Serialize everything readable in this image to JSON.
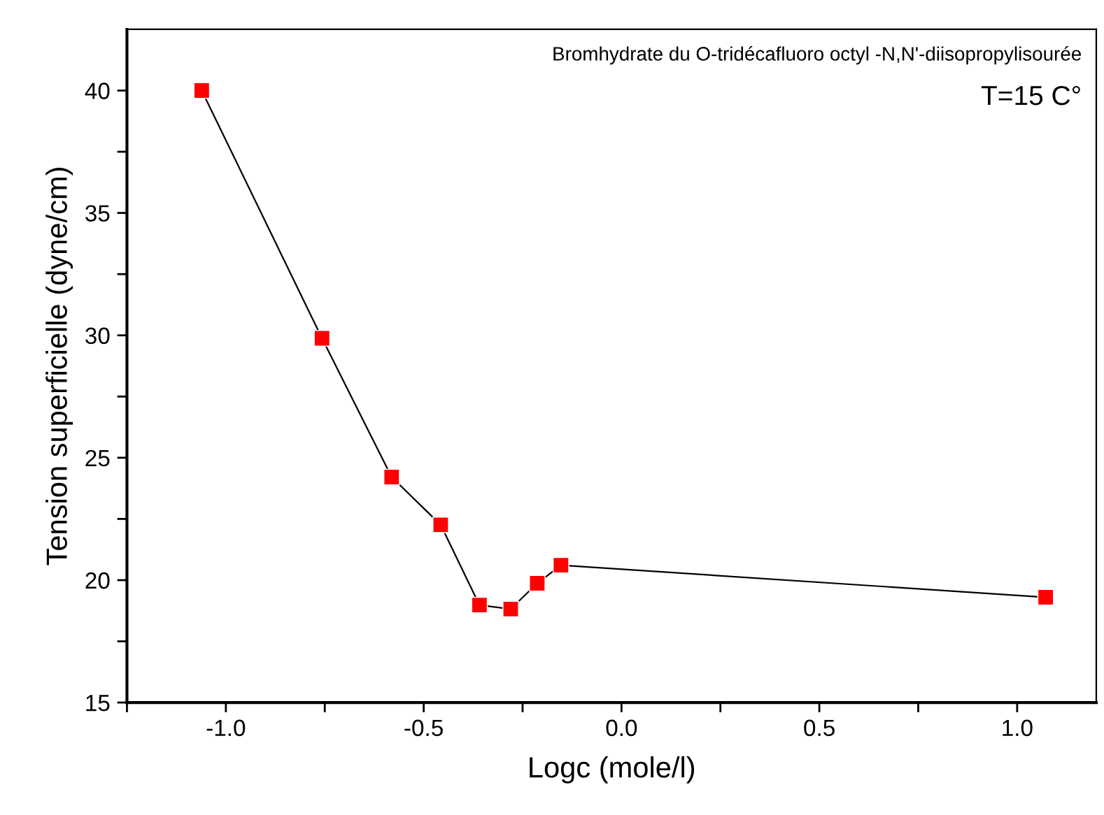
{
  "chart_data": {
    "type": "line",
    "xlabel": "Logc (mole/l)",
    "ylabel": "Tension superficielle (dyne/cm)",
    "annotations": [
      "Bromhydrate du O-tridécafluoro octyl -N,N'-diisopropylisourée",
      "T=15 C°"
    ],
    "x": [
      -1.061,
      -0.757,
      -0.581,
      -0.457,
      -0.359,
      -0.28,
      -0.213,
      -0.153,
      1.072
    ],
    "series": [
      {
        "color": "#ff0000",
        "values": [
          40,
          29.88,
          24.21,
          22.26,
          18.98,
          18.82,
          19.87,
          20.61,
          19.3
        ]
      }
    ],
    "marker": "square",
    "line_style": "solid",
    "grid": false,
    "legend": false,
    "xlim": [
      -1.25,
      1.2
    ],
    "xticks": [
      {
        "value": -1.25,
        "label": null
      },
      {
        "value": -1,
        "label": "-1.0"
      },
      {
        "value": -0.75,
        "label": null
      },
      -0.5,
      {
        "value": -0.25,
        "label": null
      },
      {
        "value": 0,
        "label": "0.0"
      },
      {
        "value": 0.25,
        "label": null
      },
      0.5,
      {
        "value": 0.75,
        "label": null
      },
      {
        "value": 1,
        "label": "1.0"
      }
    ],
    "ylim": [
      15,
      42.5
    ],
    "yticks": [
      15,
      {
        "value": 17.5,
        "label": null
      },
      20,
      {
        "value": 22.5,
        "label": null
      },
      25,
      {
        "value": 27.5,
        "label": null
      },
      30,
      {
        "value": 32.5,
        "label": null
      },
      35,
      {
        "value": 37.5,
        "label": null
      },
      40
    ]
  }
}
